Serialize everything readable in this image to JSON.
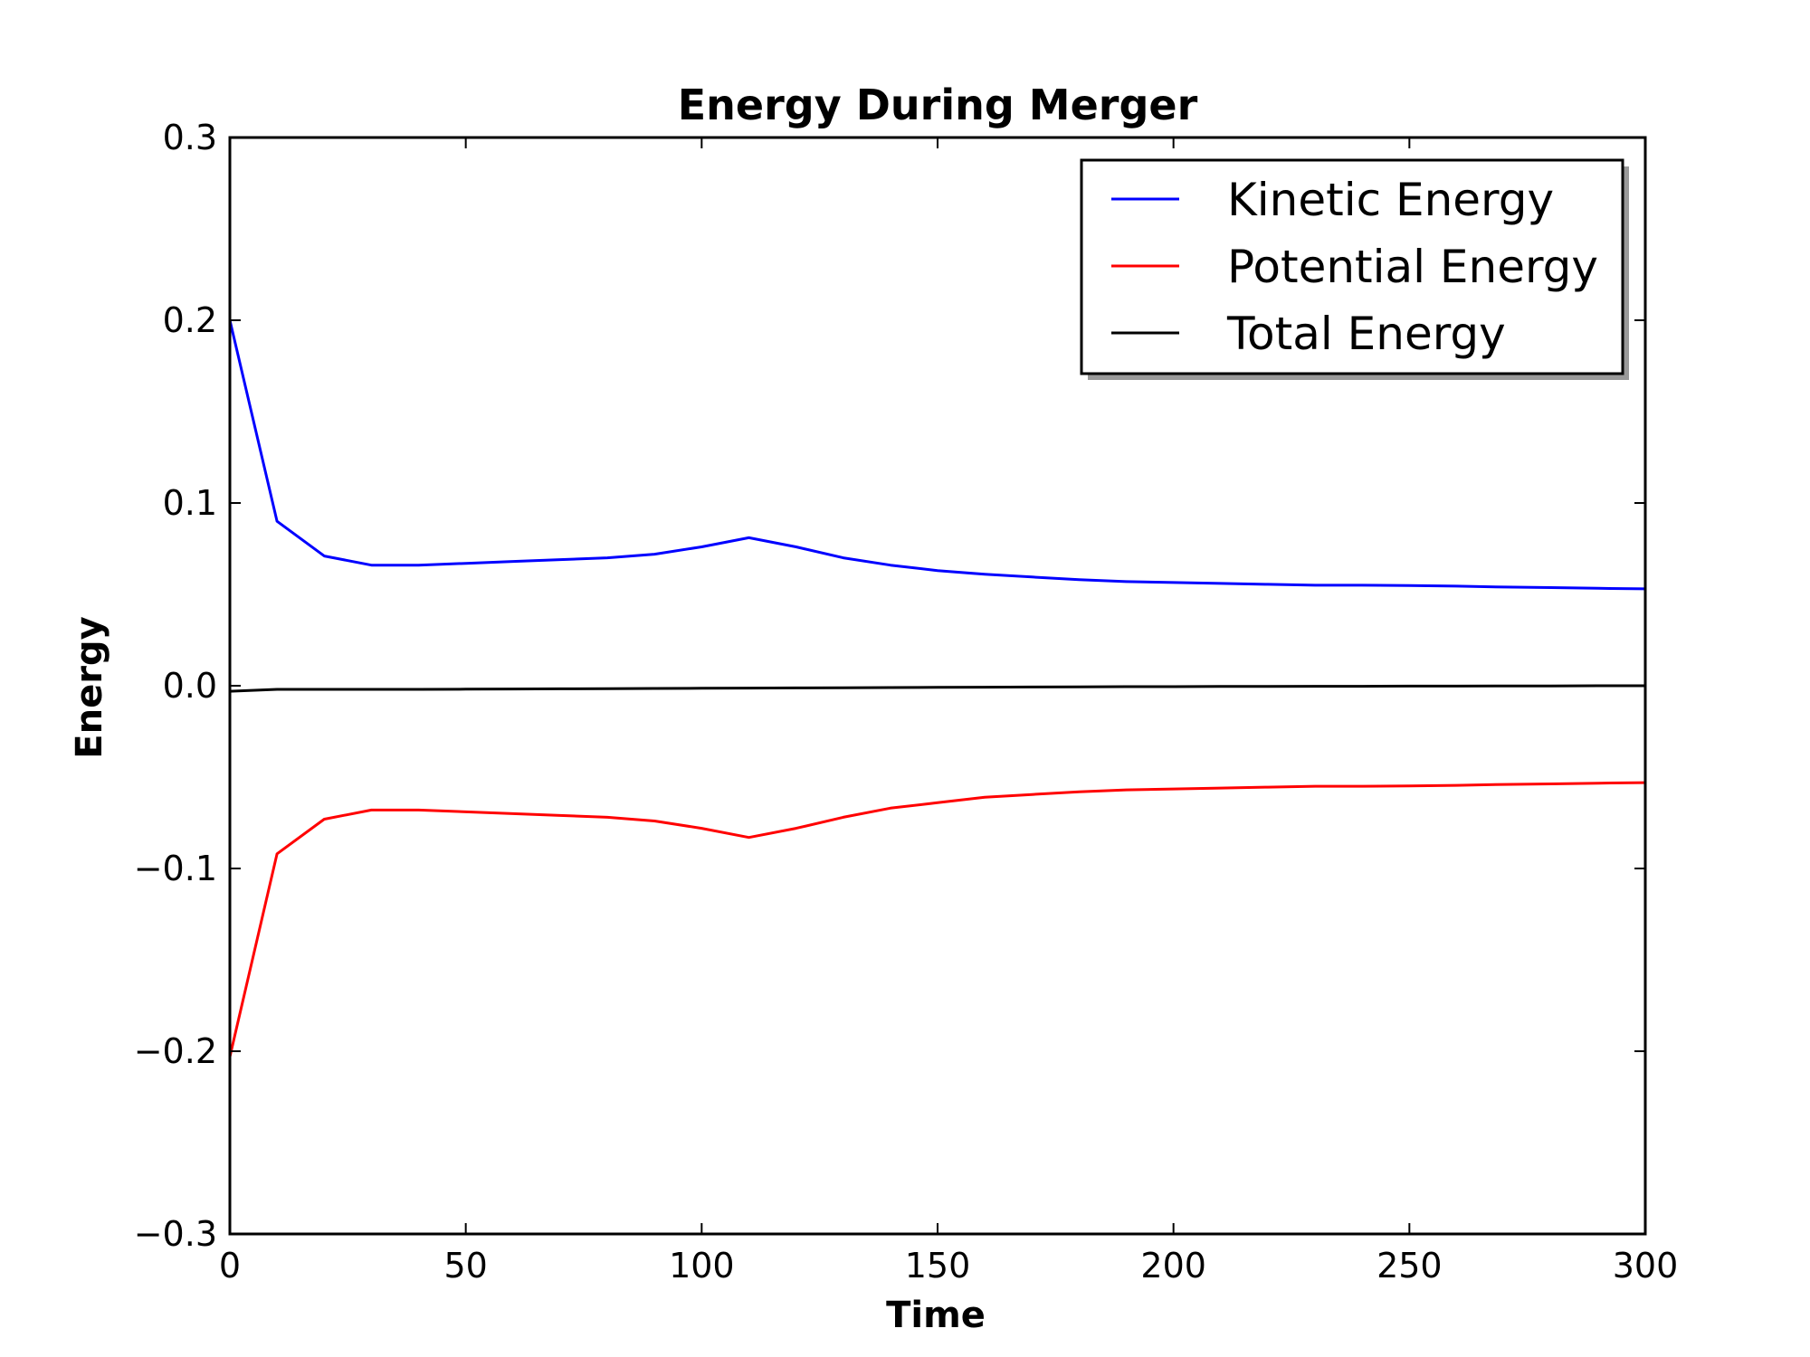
{
  "chart_data": {
    "type": "line",
    "title": "Energy During Merger",
    "xlabel": "Time",
    "ylabel": "Energy",
    "xlim": [
      0,
      300
    ],
    "ylim": [
      -0.3,
      0.3
    ],
    "xticks": [
      0,
      50,
      100,
      150,
      200,
      250,
      300
    ],
    "xtick_labels": [
      "0",
      "50",
      "100",
      "150",
      "200",
      "250",
      "300"
    ],
    "yticks": [
      0.3,
      0.2,
      0.1,
      0.0,
      -0.1,
      -0.2,
      -0.3
    ],
    "ytick_labels": [
      "0.3",
      "0.2",
      "0.1",
      "0.0",
      "−0.1",
      "−0.2",
      "−0.3"
    ],
    "grid": false,
    "legend_position": "top-right",
    "x": [
      0,
      10,
      20,
      30,
      40,
      50,
      60,
      70,
      80,
      90,
      100,
      110,
      120,
      130,
      140,
      150,
      160,
      170,
      180,
      190,
      200,
      210,
      220,
      230,
      240,
      250,
      260,
      270,
      280,
      290,
      300
    ],
    "series": [
      {
        "name": "Kinetic Energy",
        "color": "#0000ff",
        "values": [
          0.2,
          0.09,
          0.071,
          0.066,
          0.066,
          0.067,
          0.068,
          0.069,
          0.07,
          0.072,
          0.076,
          0.081,
          0.076,
          0.07,
          0.066,
          0.063,
          0.061,
          0.0595,
          0.058,
          0.057,
          0.0565,
          0.056,
          0.0555,
          0.055,
          0.055,
          0.0548,
          0.0545,
          0.054,
          0.0537,
          0.0533,
          0.053
        ]
      },
      {
        "name": "Potential Energy",
        "color": "#ff0000",
        "values": [
          -0.203,
          -0.092,
          -0.073,
          -0.068,
          -0.068,
          -0.069,
          -0.07,
          -0.071,
          -0.072,
          -0.074,
          -0.078,
          -0.083,
          -0.078,
          -0.072,
          -0.067,
          -0.064,
          -0.061,
          -0.0595,
          -0.058,
          -0.057,
          -0.0565,
          -0.056,
          -0.0555,
          -0.055,
          -0.055,
          -0.0548,
          -0.0545,
          -0.054,
          -0.0537,
          -0.0533,
          -0.053
        ]
      },
      {
        "name": "Total Energy",
        "color": "#000000",
        "values": [
          -0.003,
          -0.002,
          -0.002,
          -0.002,
          -0.002,
          -0.0019,
          -0.0018,
          -0.0017,
          -0.0016,
          -0.0015,
          -0.0014,
          -0.0013,
          -0.0012,
          -0.0011,
          -0.001,
          -0.0009,
          -0.0008,
          -0.0007,
          -0.0006,
          -0.0005,
          -0.0005,
          -0.0004,
          -0.0004,
          -0.0003,
          -0.0003,
          -0.0002,
          -0.0002,
          -0.0001,
          -0.0001,
          0.0,
          0.0
        ]
      }
    ]
  }
}
